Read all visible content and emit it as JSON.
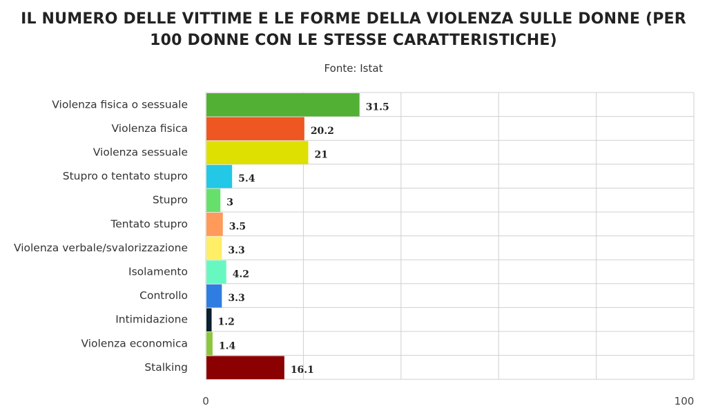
{
  "chart_data": {
    "type": "bar",
    "orientation": "horizontal",
    "title": "IL NUMERO DELLE VITTIME E LE FORME DELLA VIOLENZA SULLE DONNE (PER 100 DONNE CON LE STESSE CARATTERISTICHE)",
    "subtitle": "Fonte: Istat",
    "categories": [
      "Violenza fisica o sessuale",
      "Violenza fisica",
      "Violenza sessuale",
      "Stupro o tentato stupro",
      "Stupro",
      "Tentato stupro",
      "Violenza verbale/svalorizzazione",
      "Isolamento",
      "Controllo",
      "Intimidazione",
      "Violenza economica",
      "Stalking"
    ],
    "values": [
      31.5,
      20.2,
      21,
      5.4,
      3,
      3.5,
      3.3,
      4.2,
      3.3,
      1.2,
      1.4,
      16.1
    ],
    "value_labels": [
      "31.5",
      "20.2",
      "21",
      "5.4",
      "3",
      "3.5",
      "3.3",
      "4.2",
      "3.3",
      "1.2",
      "1.4",
      "16.1"
    ],
    "colors": [
      "#52b035",
      "#ee5722",
      "#dde000",
      "#22c8e6",
      "#66e06a",
      "#ff9a5a",
      "#ffee66",
      "#66f8c0",
      "#2f7de0",
      "#0a1f30",
      "#8cc63f",
      "#8b0000"
    ],
    "xlim": [
      0,
      100
    ],
    "x_ticks": [
      "0",
      "100"
    ],
    "grid": true,
    "legend": "none"
  }
}
